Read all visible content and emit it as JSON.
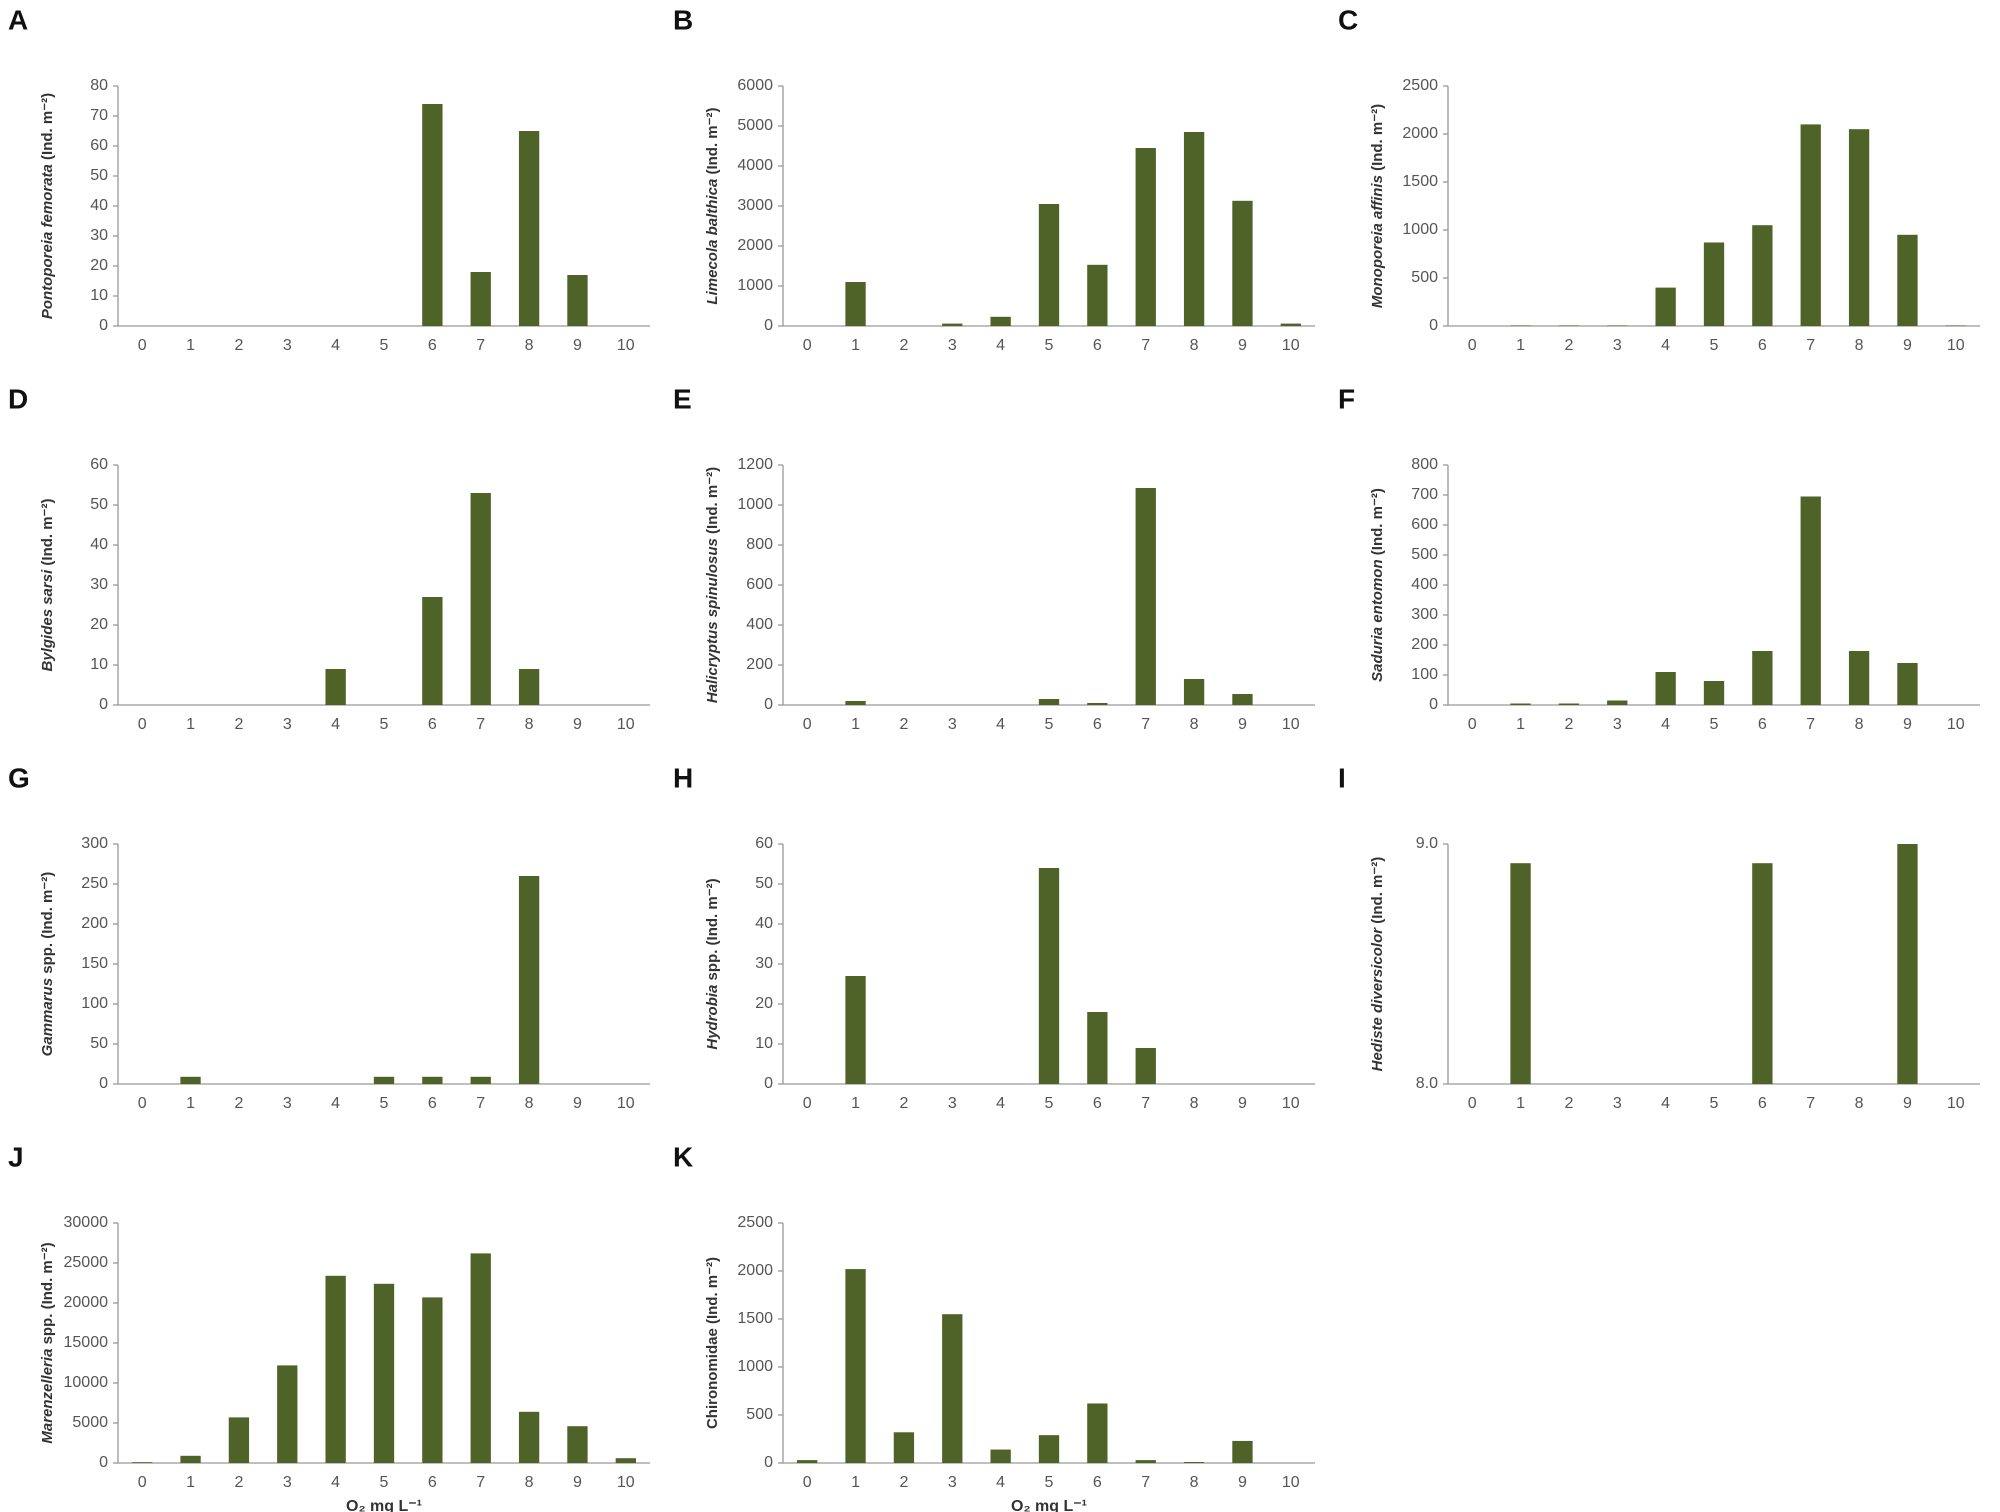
{
  "chart_data": [
    {
      "type": "bar",
      "panel": "A",
      "ylabel_taxon": "Pontoporeia femorata",
      "ylabel_unit": " (Ind. m⁻²)",
      "categories": [
        "0",
        "1",
        "2",
        "3",
        "4",
        "5",
        "6",
        "7",
        "8",
        "9",
        "10"
      ],
      "values": [
        0,
        0,
        0,
        0,
        0,
        0,
        74,
        18,
        65,
        17,
        0
      ],
      "color": "#4f6228",
      "ylim": [
        0,
        80
      ],
      "yticks": [
        0,
        10,
        20,
        30,
        40,
        50,
        60,
        70,
        80
      ]
    },
    {
      "type": "bar",
      "panel": "B",
      "ylabel_taxon": "Limecola balthica",
      "ylabel_unit": " (Ind. m⁻²)",
      "categories": [
        "0",
        "1",
        "2",
        "3",
        "4",
        "5",
        "6",
        "7",
        "8",
        "9",
        "10"
      ],
      "values": [
        0,
        1100,
        0,
        60,
        230,
        3050,
        1530,
        4450,
        4850,
        3130,
        60
      ],
      "color": "#4f6228",
      "ylim": [
        0,
        6000
      ],
      "yticks": [
        0,
        1000,
        2000,
        3000,
        4000,
        5000,
        6000
      ]
    },
    {
      "type": "bar",
      "panel": "C",
      "ylabel_taxon": "Monoporeia affinis",
      "ylabel_unit": " (Ind. m⁻²)",
      "categories": [
        "0",
        "1",
        "2",
        "3",
        "4",
        "5",
        "6",
        "7",
        "8",
        "9",
        "10"
      ],
      "values": [
        0,
        5,
        5,
        5,
        400,
        870,
        1050,
        2100,
        2050,
        950,
        5
      ],
      "color": "#4f6228",
      "ylim": [
        0,
        2500
      ],
      "yticks": [
        0,
        500,
        1000,
        1500,
        2000,
        2500
      ]
    },
    {
      "type": "bar",
      "panel": "D",
      "ylabel_taxon": "Bylgides sarsi",
      "ylabel_unit": " (Ind. m⁻²)",
      "categories": [
        "0",
        "1",
        "2",
        "3",
        "4",
        "5",
        "6",
        "7",
        "8",
        "9",
        "10"
      ],
      "values": [
        0,
        0,
        0,
        0,
        9,
        0,
        27,
        53,
        9,
        0,
        0
      ],
      "color": "#4f6228",
      "ylim": [
        0,
        60
      ],
      "yticks": [
        0,
        10,
        20,
        30,
        40,
        50,
        60
      ]
    },
    {
      "type": "bar",
      "panel": "E",
      "ylabel_taxon": "Halicryptus spinulosus",
      "ylabel_unit": " (Ind. m⁻²)",
      "categories": [
        "0",
        "1",
        "2",
        "3",
        "4",
        "5",
        "6",
        "7",
        "8",
        "9",
        "10"
      ],
      "values": [
        0,
        20,
        0,
        0,
        0,
        30,
        10,
        1085,
        130,
        55,
        0
      ],
      "color": "#4f6228",
      "ylim": [
        0,
        1200
      ],
      "yticks": [
        0,
        200,
        400,
        600,
        800,
        1000,
        1200
      ]
    },
    {
      "type": "bar",
      "panel": "F",
      "ylabel_taxon": "Saduria entomon",
      "ylabel_unit": " (Ind. m⁻²)",
      "categories": [
        "0",
        "1",
        "2",
        "3",
        "4",
        "5",
        "6",
        "7",
        "8",
        "9",
        "10"
      ],
      "values": [
        0,
        5,
        5,
        15,
        110,
        80,
        180,
        695,
        180,
        140,
        0
      ],
      "color": "#4f6228",
      "ylim": [
        0,
        800
      ],
      "yticks": [
        0,
        100,
        200,
        300,
        400,
        500,
        600,
        700,
        800
      ]
    },
    {
      "type": "bar",
      "panel": "G",
      "ylabel_taxon": "Gammarus",
      "ylabel_unit": " spp. (Ind. m⁻²)",
      "categories": [
        "0",
        "1",
        "2",
        "3",
        "4",
        "5",
        "6",
        "7",
        "8",
        "9",
        "10"
      ],
      "values": [
        0,
        9,
        0,
        0,
        0,
        9,
        9,
        9,
        260,
        0,
        0
      ],
      "color": "#4f6228",
      "ylim": [
        0,
        300
      ],
      "yticks": [
        0,
        50,
        100,
        150,
        200,
        250,
        300
      ]
    },
    {
      "type": "bar",
      "panel": "H",
      "ylabel_taxon": "Hydrobia",
      "ylabel_unit": " spp. (Ind. m⁻²)",
      "categories": [
        "0",
        "1",
        "2",
        "3",
        "4",
        "5",
        "6",
        "7",
        "8",
        "9",
        "10"
      ],
      "values": [
        0,
        27,
        0,
        0,
        0,
        54,
        18,
        9,
        0,
        0,
        0
      ],
      "color": "#4f6228",
      "ylim": [
        0,
        60
      ],
      "yticks": [
        0,
        10,
        20,
        30,
        40,
        50,
        60
      ]
    },
    {
      "type": "bar",
      "panel": "I",
      "ylabel_taxon": "Hediste diversicolor",
      "ylabel_unit": " (Ind. m⁻²)",
      "categories": [
        "0",
        "1",
        "2",
        "3",
        "4",
        "5",
        "6",
        "7",
        "8",
        "9",
        "10"
      ],
      "values": [
        null,
        8.92,
        null,
        null,
        null,
        null,
        8.92,
        null,
        null,
        9.0,
        null
      ],
      "color": "#4f6228",
      "ylim": [
        8,
        9
      ],
      "yticks": [
        {
          "value": 8,
          "label": "8.0"
        },
        {
          "value": 9,
          "label": "9.0"
        }
      ]
    },
    {
      "type": "bar",
      "panel": "J",
      "ylabel_taxon": "Marenzelleria",
      "ylabel_unit": " spp. (Ind. m⁻²)",
      "xlabel": "O₂ mg L⁻¹",
      "categories": [
        "0",
        "1",
        "2",
        "3",
        "4",
        "5",
        "6",
        "7",
        "8",
        "9",
        "10"
      ],
      "values": [
        100,
        900,
        5700,
        12200,
        23400,
        22400,
        20700,
        26200,
        6400,
        4600,
        600
      ],
      "color": "#4f6228",
      "ylim": [
        0,
        30000
      ],
      "yticks": [
        0,
        5000,
        10000,
        15000,
        20000,
        25000,
        30000
      ]
    },
    {
      "type": "bar",
      "panel": "K",
      "ylabel_unit": "Chironomidae (Ind. m⁻²)",
      "xlabel": "O₂ mg L⁻¹",
      "categories": [
        "0",
        "1",
        "2",
        "3",
        "4",
        "5",
        "6",
        "7",
        "8",
        "9",
        "10"
      ],
      "values": [
        30,
        2020,
        320,
        1550,
        140,
        290,
        620,
        30,
        10,
        230,
        0
      ],
      "color": "#4f6228",
      "ylim": [
        0,
        2500
      ],
      "yticks": [
        0,
        500,
        1000,
        1500,
        2000,
        2500
      ]
    }
  ]
}
